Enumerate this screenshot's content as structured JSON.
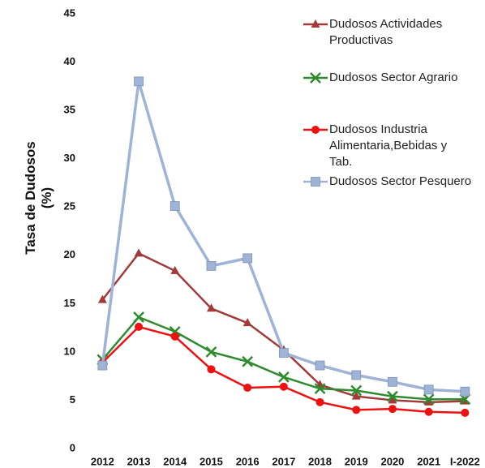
{
  "chart_data": {
    "type": "line",
    "y_label": "Tasa de Dudosos (%)",
    "categories": [
      "2012",
      "2013",
      "2014",
      "2015",
      "2016",
      "2017",
      "2018",
      "2019",
      "2020",
      "2021",
      "I-2022"
    ],
    "series": [
      {
        "name": "Dudosos Actividades Productivas",
        "color": "#a33a3a",
        "marker": "triangle",
        "values": [
          15.4,
          20.2,
          18.4,
          14.5,
          13.0,
          10.2,
          6.6,
          5.4,
          5.0,
          4.8,
          4.9
        ]
      },
      {
        "name": "Dudosos Sector Agrario",
        "color": "#2e8b2e",
        "marker": "x",
        "values": [
          9.2,
          13.6,
          12.1,
          10.0,
          9.0,
          7.4,
          6.2,
          6.0,
          5.4,
          5.1,
          5.1
        ]
      },
      {
        "name": "Dudosos Industria Alimentaria,Bebidas y Tab.",
        "color": "#ee1111",
        "marker": "circle",
        "values": [
          8.9,
          12.6,
          11.6,
          8.2,
          6.3,
          6.4,
          4.8,
          4.0,
          4.1,
          3.8,
          3.7
        ]
      },
      {
        "name": "Dudosos Sector Pesquero",
        "color": "#9fb3d6",
        "marker": "square",
        "values": [
          8.6,
          38.0,
          25.1,
          18.9,
          19.7,
          9.9,
          8.6,
          7.6,
          6.9,
          6.1,
          5.9
        ]
      }
    ],
    "ylim": [
      0,
      45
    ],
    "yticks": [
      0,
      5,
      10,
      15,
      20,
      25,
      30,
      35,
      40,
      45
    ],
    "grid": false
  }
}
